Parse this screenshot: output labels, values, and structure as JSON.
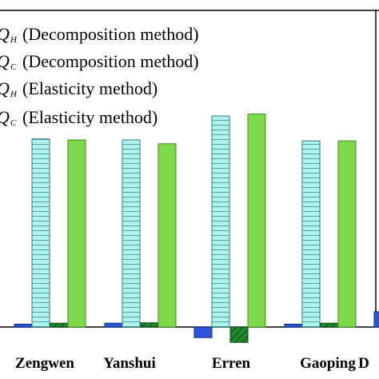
{
  "chart_data": {
    "type": "bar",
    "title": "",
    "xlabel": "",
    "ylabel": "",
    "categories": [
      "Zengwen",
      "Yanshui",
      "Erren",
      "Gaoping",
      "D"
    ],
    "ylim": [
      -10,
      130
    ],
    "grid": false,
    "legend_placement": "top-left",
    "series": [
      {
        "name": "(Decomposition method)",
        "symbol": "Q",
        "subscript": "H",
        "color": "#2b55d6",
        "pattern": "solid",
        "values": [
          1.5,
          2,
          -5.5,
          1.5,
          8
        ]
      },
      {
        "name": "(Decomposition method)",
        "symbol": "Q",
        "subscript": "C",
        "color": "#aef3ee",
        "pattern": "horizontal-lines",
        "values": [
          98,
          97.5,
          110,
          97,
          null
        ]
      },
      {
        "name": "(Elasticity method)",
        "symbol": "Q",
        "subscript": "H",
        "color": "#1e8a2e",
        "pattern": "diagonal-hatch",
        "values": [
          2,
          2.2,
          -8,
          2,
          null
        ]
      },
      {
        "name": "(Elasticity method)",
        "symbol": "Q",
        "subscript": "C",
        "color": "#7ed94a",
        "pattern": "solid",
        "values": [
          97.5,
          95.5,
          111,
          97,
          null
        ]
      }
    ]
  }
}
